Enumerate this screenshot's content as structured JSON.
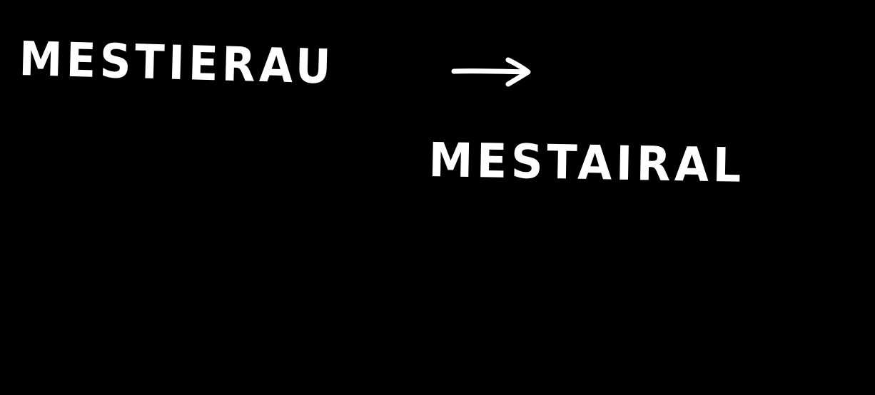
{
  "note": {
    "source_word": "MESTIERAU",
    "target_word": "MESTAIRAL",
    "connector_icon": "right-arrow-icon"
  },
  "colors": {
    "background": "#000000",
    "ink": "#ffffff"
  }
}
